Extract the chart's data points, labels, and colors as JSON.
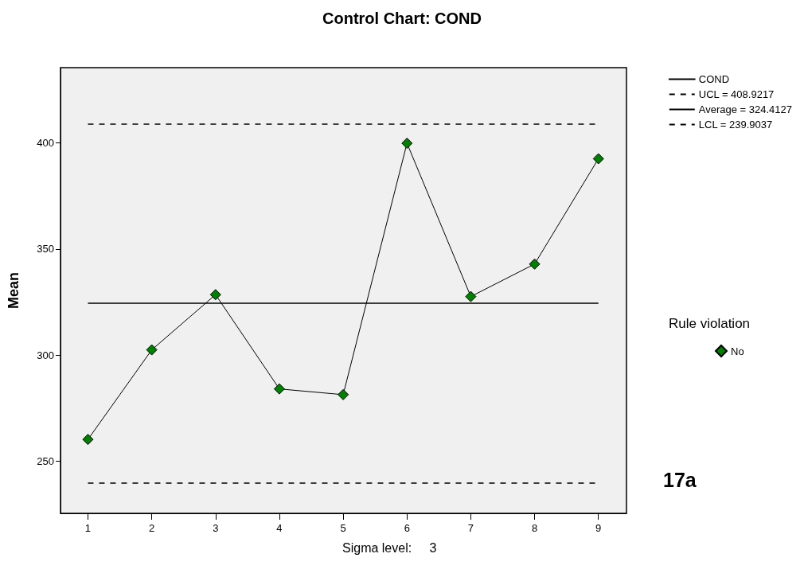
{
  "chart_data": {
    "type": "line",
    "title": "Control Chart: COND",
    "ylabel": "Mean",
    "legend_title": "Rule violation",
    "x": [
      1,
      2,
      3,
      4,
      5,
      6,
      7,
      8,
      9
    ],
    "series": [
      {
        "name": "COND",
        "type": "line",
        "color": "#000000",
        "marker": "none",
        "values": [
          260.3,
          302.5,
          328.5,
          284.1,
          281.4,
          399.8,
          327.6,
          342.9,
          392.5
        ]
      },
      {
        "name": "No",
        "type": "scatter",
        "color": "#008000",
        "marker": "diamond",
        "values": [
          260.3,
          302.5,
          328.5,
          284.1,
          281.4,
          399.8,
          327.6,
          342.9,
          392.5
        ]
      }
    ],
    "ref_lines": [
      {
        "axis": "y",
        "value": 408.9217,
        "label": "UCL = 408.9217",
        "color": "#000000",
        "line_style": "dashed"
      },
      {
        "axis": "y",
        "value": 324.4127,
        "label": "Average = 324.4127",
        "color": "#000000",
        "line_style": "solid"
      },
      {
        "axis": "y",
        "value": 239.9037,
        "label": "LCL = 239.9037",
        "color": "#000000",
        "line_style": "dashed"
      }
    ],
    "xlim": [
      0.57,
      9.44
    ],
    "xticks": [
      1,
      2,
      3,
      4,
      5,
      6,
      7,
      8,
      9
    ],
    "ylim": [
      225.5,
      435.4
    ],
    "yticks": [
      250,
      300,
      350,
      400
    ],
    "grid": false,
    "legend": "top right",
    "annotations": [
      "17a",
      "Sigma level:     3"
    ]
  }
}
